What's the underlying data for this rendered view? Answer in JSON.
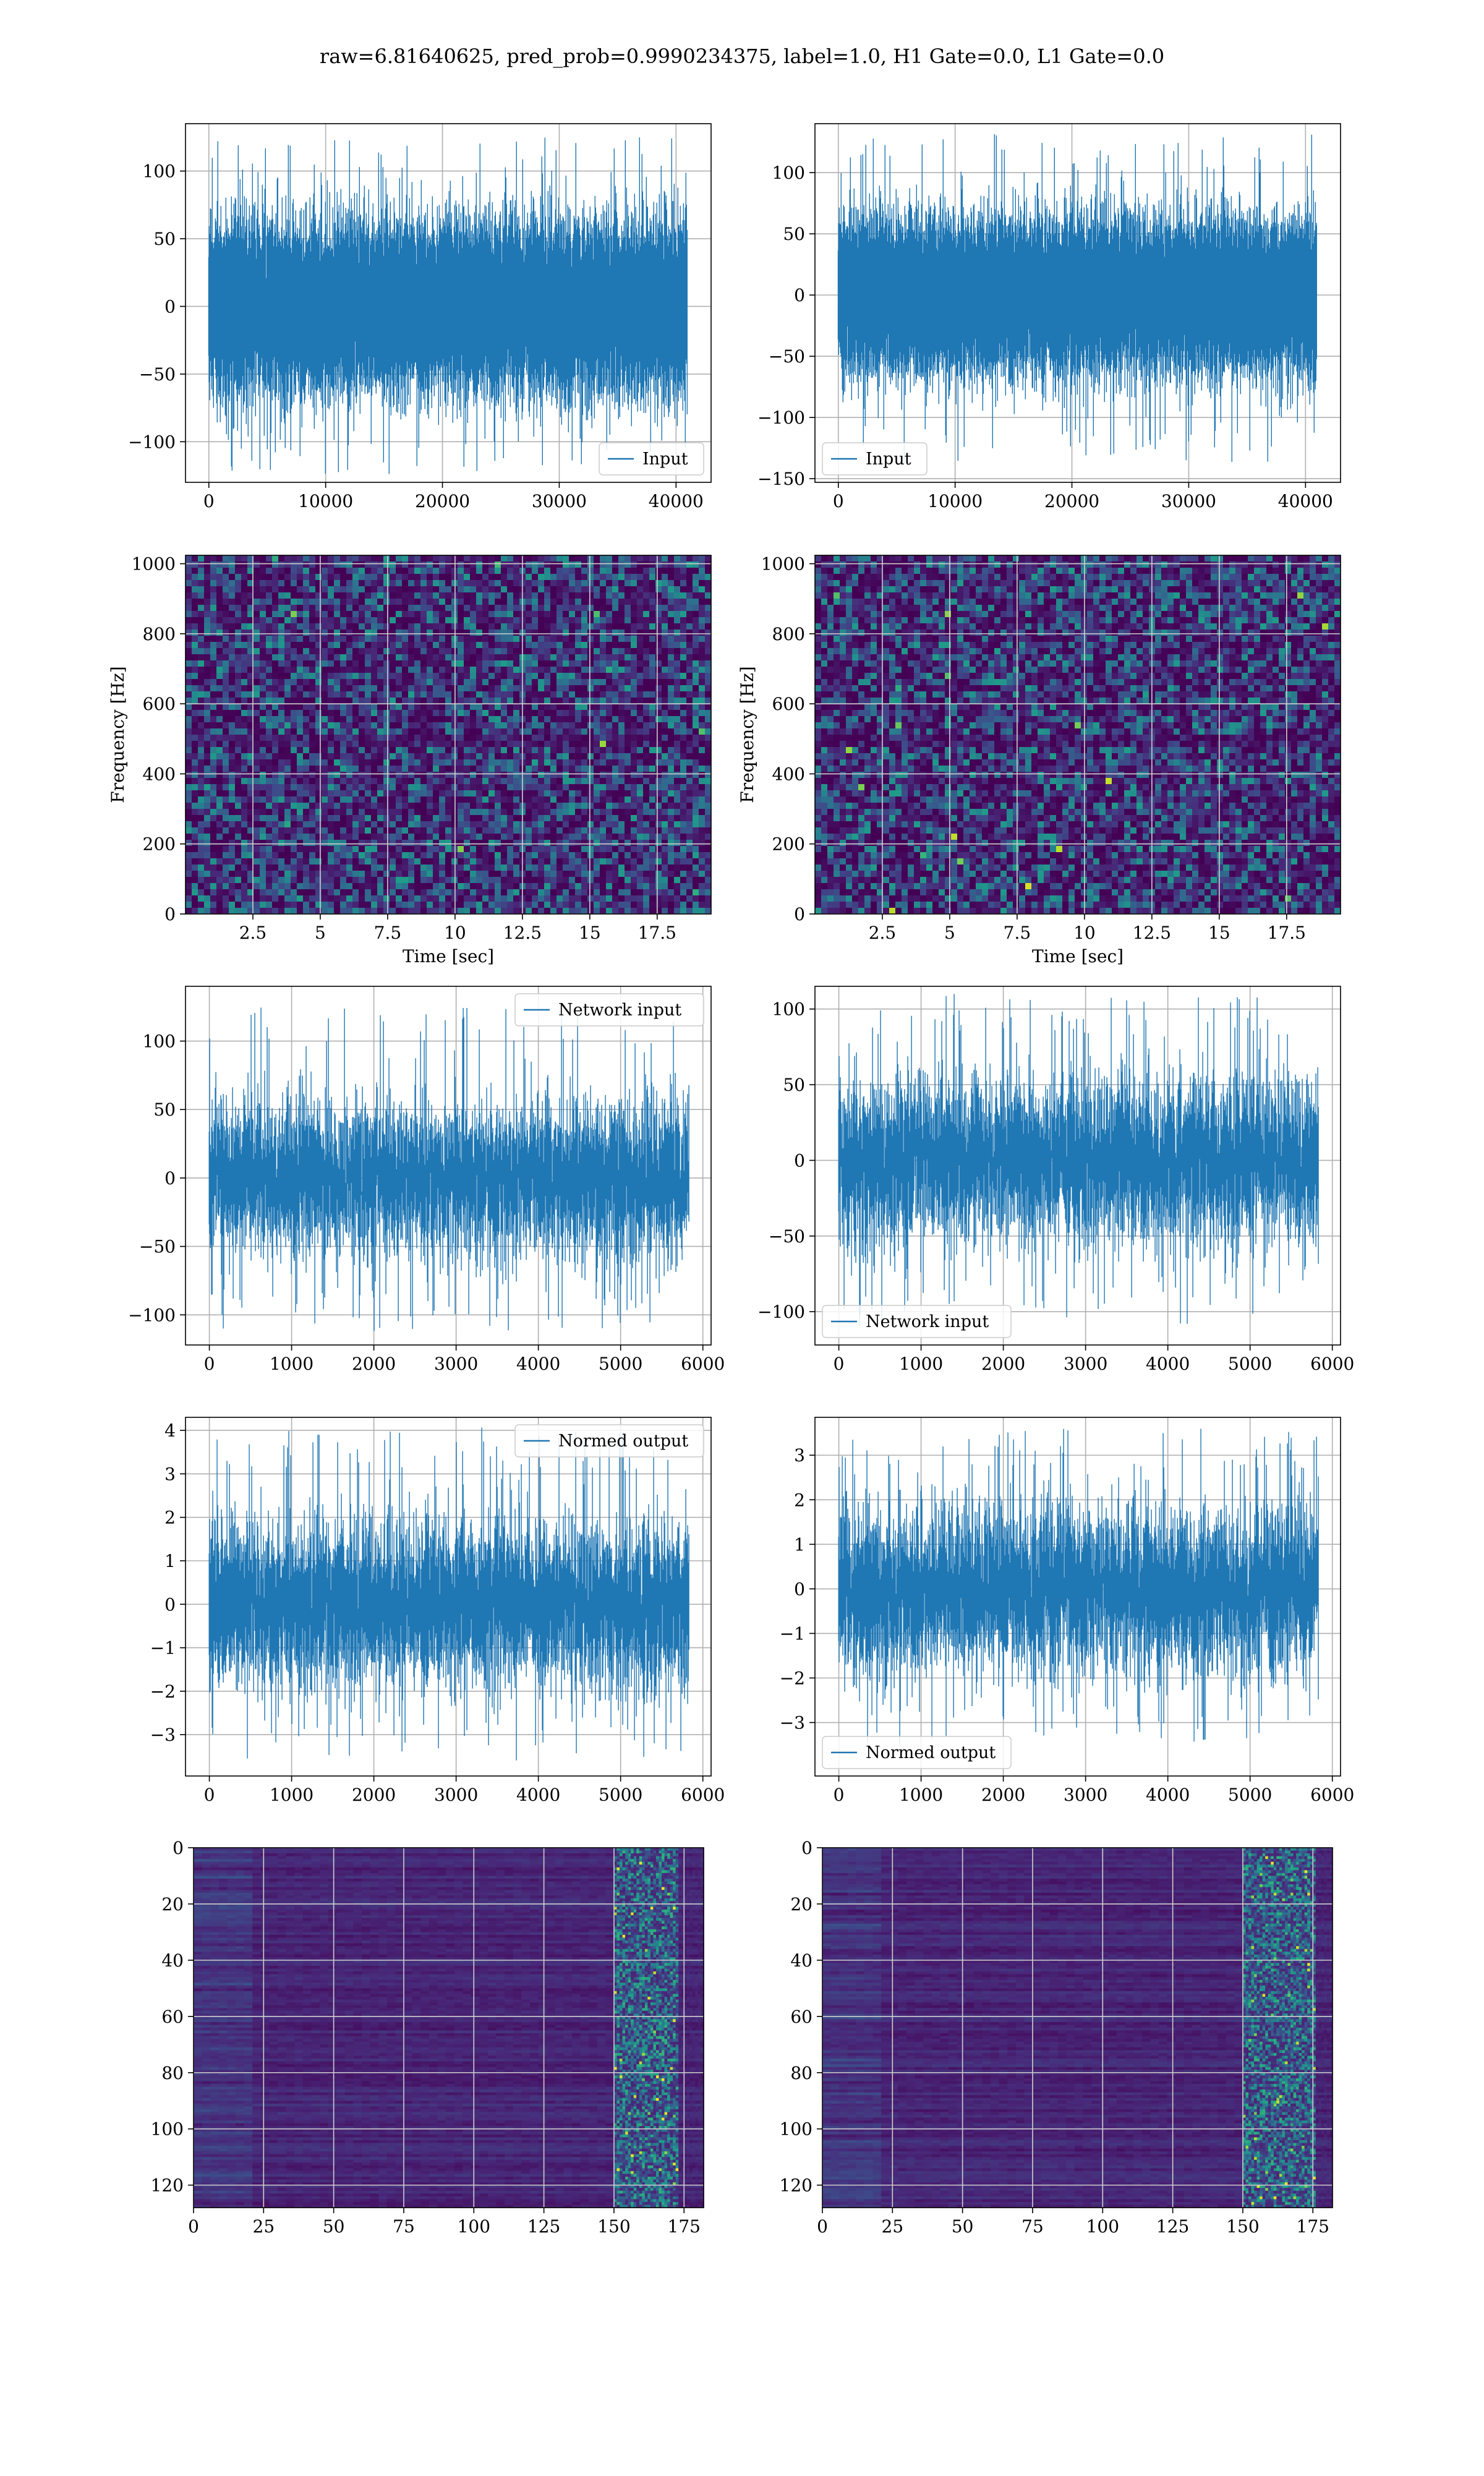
{
  "figure": {
    "title": "raw=6.81640625, pred_prob=0.9990234375, label=1.0, H1 Gate=0.0, L1 Gate=0.0"
  },
  "colors": {
    "line": "#1f77b4",
    "grid": "#b0b0b0",
    "grid_on_image": "#cfcfcf",
    "spectrogram_low": "#440154",
    "spectrogram_mid": "#21918c",
    "spectrogram_high": "#fde725"
  },
  "chart_data": [
    {
      "id": "input-h1",
      "type": "line",
      "xlim": [
        -2000,
        43000
      ],
      "ylim": [
        -130,
        135
      ],
      "xticks": [
        0,
        10000,
        20000,
        30000,
        40000
      ],
      "yticks": [
        -100,
        -50,
        0,
        50,
        100
      ],
      "xlabel": "",
      "ylabel": "",
      "legend": "Input",
      "legend_loc": "lower-right",
      "signal": {
        "n_samples": 40960,
        "x_max": 40960,
        "std": 28,
        "peak_max": 125,
        "peak_min": -125
      },
      "grid": true
    },
    {
      "id": "input-l1",
      "type": "line",
      "xlim": [
        -2000,
        43000
      ],
      "ylim": [
        -153,
        140
      ],
      "xticks": [
        0,
        10000,
        20000,
        30000,
        40000
      ],
      "yticks": [
        -150,
        -100,
        -50,
        0,
        50,
        100
      ],
      "xlabel": "",
      "ylabel": "",
      "legend": "Input",
      "legend_loc": "lower-left",
      "signal": {
        "n_samples": 40960,
        "x_max": 40960,
        "std": 28,
        "peak_max": 133,
        "peak_min": -138
      },
      "grid": true
    },
    {
      "id": "spectrogram-h1",
      "type": "heatmap",
      "xlim": [
        0,
        19.5
      ],
      "ylim": [
        0,
        1024
      ],
      "xticks": [
        2.5,
        5.0,
        7.5,
        10.0,
        12.5,
        15.0,
        17.5
      ],
      "yticks": [
        0,
        200,
        400,
        600,
        800,
        1000
      ],
      "xlabel": "Time [sec]",
      "ylabel": "Frequency [Hz]",
      "colormap": "viridis",
      "grid": true
    },
    {
      "id": "spectrogram-l1",
      "type": "heatmap",
      "xlim": [
        0,
        19.5
      ],
      "ylim": [
        0,
        1024
      ],
      "xticks": [
        2.5,
        5.0,
        7.5,
        10.0,
        12.5,
        15.0,
        17.5
      ],
      "yticks": [
        0,
        200,
        400,
        600,
        800,
        1000
      ],
      "xlabel": "Time [sec]",
      "ylabel": "Frequency [Hz]",
      "colormap": "viridis",
      "grid": true
    },
    {
      "id": "network-input-h1",
      "type": "line",
      "xlim": [
        -290,
        6100
      ],
      "ylim": [
        -122,
        140
      ],
      "xticks": [
        0,
        1000,
        2000,
        3000,
        4000,
        5000,
        6000
      ],
      "yticks": [
        -100,
        -50,
        0,
        50,
        100
      ],
      "xlabel": "",
      "ylabel": "",
      "legend": "Network input",
      "legend_loc": "upper-right",
      "signal": {
        "n_samples": 5830,
        "x_max": 5830,
        "std": 26,
        "peak_max": 128,
        "peak_min": -112
      },
      "grid": true
    },
    {
      "id": "network-input-l1",
      "type": "line",
      "xlim": [
        -290,
        6100
      ],
      "ylim": [
        -122,
        115
      ],
      "xticks": [
        0,
        1000,
        2000,
        3000,
        4000,
        5000,
        6000
      ],
      "yticks": [
        -100,
        -50,
        0,
        50,
        100
      ],
      "xlabel": "",
      "ylabel": "",
      "legend": "Network input",
      "legend_loc": "lower-left",
      "signal": {
        "n_samples": 5830,
        "x_max": 5830,
        "std": 26,
        "peak_max": 110,
        "peak_min": -110
      },
      "grid": true
    },
    {
      "id": "normed-output-h1",
      "type": "line",
      "xlim": [
        -290,
        6100
      ],
      "ylim": [
        -3.95,
        4.3
      ],
      "xticks": [
        0,
        1000,
        2000,
        3000,
        4000,
        5000,
        6000
      ],
      "yticks": [
        -3,
        -2,
        -1,
        0,
        1,
        2,
        3,
        4
      ],
      "xlabel": "",
      "ylabel": "",
      "legend": "Normed output",
      "legend_loc": "upper-right",
      "signal": {
        "n_samples": 5830,
        "x_max": 5830,
        "std": 0.9,
        "peak_max": 4.1,
        "peak_min": -3.6
      },
      "grid": true
    },
    {
      "id": "normed-output-l1",
      "type": "line",
      "xlim": [
        -290,
        6100
      ],
      "ylim": [
        -4.2,
        3.85
      ],
      "xticks": [
        0,
        1000,
        2000,
        3000,
        4000,
        5000,
        6000
      ],
      "yticks": [
        -3,
        -2,
        -1,
        0,
        1,
        2,
        3
      ],
      "xlabel": "",
      "ylabel": "",
      "legend": "Normed output",
      "legend_loc": "lower-left",
      "signal": {
        "n_samples": 5830,
        "x_max": 5830,
        "std": 0.9,
        "peak_max": 3.6,
        "peak_min": -3.5
      },
      "grid": true
    },
    {
      "id": "feature-map-h1",
      "type": "heatmap",
      "xlim": [
        0,
        182
      ],
      "ylim": [
        128,
        0
      ],
      "xticks": [
        0,
        25,
        50,
        75,
        100,
        125,
        150,
        175
      ],
      "yticks": [
        0,
        20,
        40,
        60,
        80,
        100,
        120
      ],
      "xlabel": "",
      "ylabel": "",
      "colormap": "viridis",
      "grid": true,
      "bright_band": [
        150,
        172
      ]
    },
    {
      "id": "feature-map-l1",
      "type": "heatmap",
      "xlim": [
        0,
        182
      ],
      "ylim": [
        128,
        0
      ],
      "xticks": [
        0,
        25,
        50,
        75,
        100,
        125,
        150,
        175
      ],
      "yticks": [
        0,
        20,
        40,
        60,
        80,
        100,
        120
      ],
      "xlabel": "",
      "ylabel": "",
      "colormap": "viridis",
      "grid": true,
      "bright_band": [
        150,
        175
      ]
    }
  ]
}
